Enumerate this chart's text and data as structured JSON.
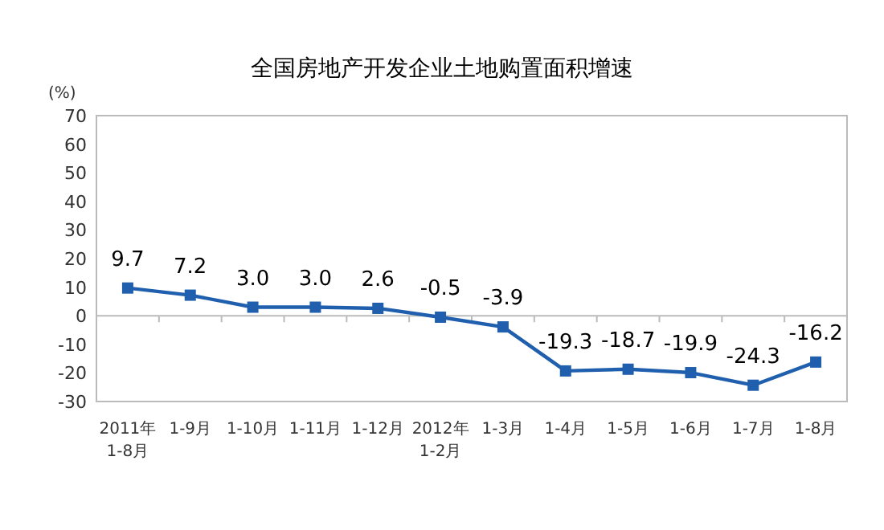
{
  "chart_data": {
    "type": "line",
    "title": "全国房地产开发企业土地购置面积增速",
    "ylabel": "(%)",
    "categories": [
      "2011年\n1-8月",
      "1-9月",
      "1-10月",
      "1-11月",
      "1-12月",
      "2012年\n1-2月",
      "1-3月",
      "1-4月",
      "1-5月",
      "1-6月",
      "1-7月",
      "1-8月"
    ],
    "series": [
      {
        "color": "#1f5fad",
        "values": [
          9.7,
          7.2,
          3.0,
          3.0,
          2.6,
          -0.5,
          -3.9,
          -19.3,
          -18.7,
          -19.9,
          -24.3,
          -16.2
        ],
        "value_labels": [
          "9.7",
          "7.2",
          "3.0",
          "3.0",
          "2.6",
          "-0.5",
          "-3.9",
          "-19.3",
          "-18.7",
          "-19.9",
          "-24.3",
          "-16.2"
        ]
      }
    ],
    "ylim": [
      -30,
      70
    ],
    "yticks": [
      -30,
      -20,
      -10,
      0,
      10,
      20,
      30,
      40,
      50,
      60,
      70
    ],
    "marker": "square"
  }
}
